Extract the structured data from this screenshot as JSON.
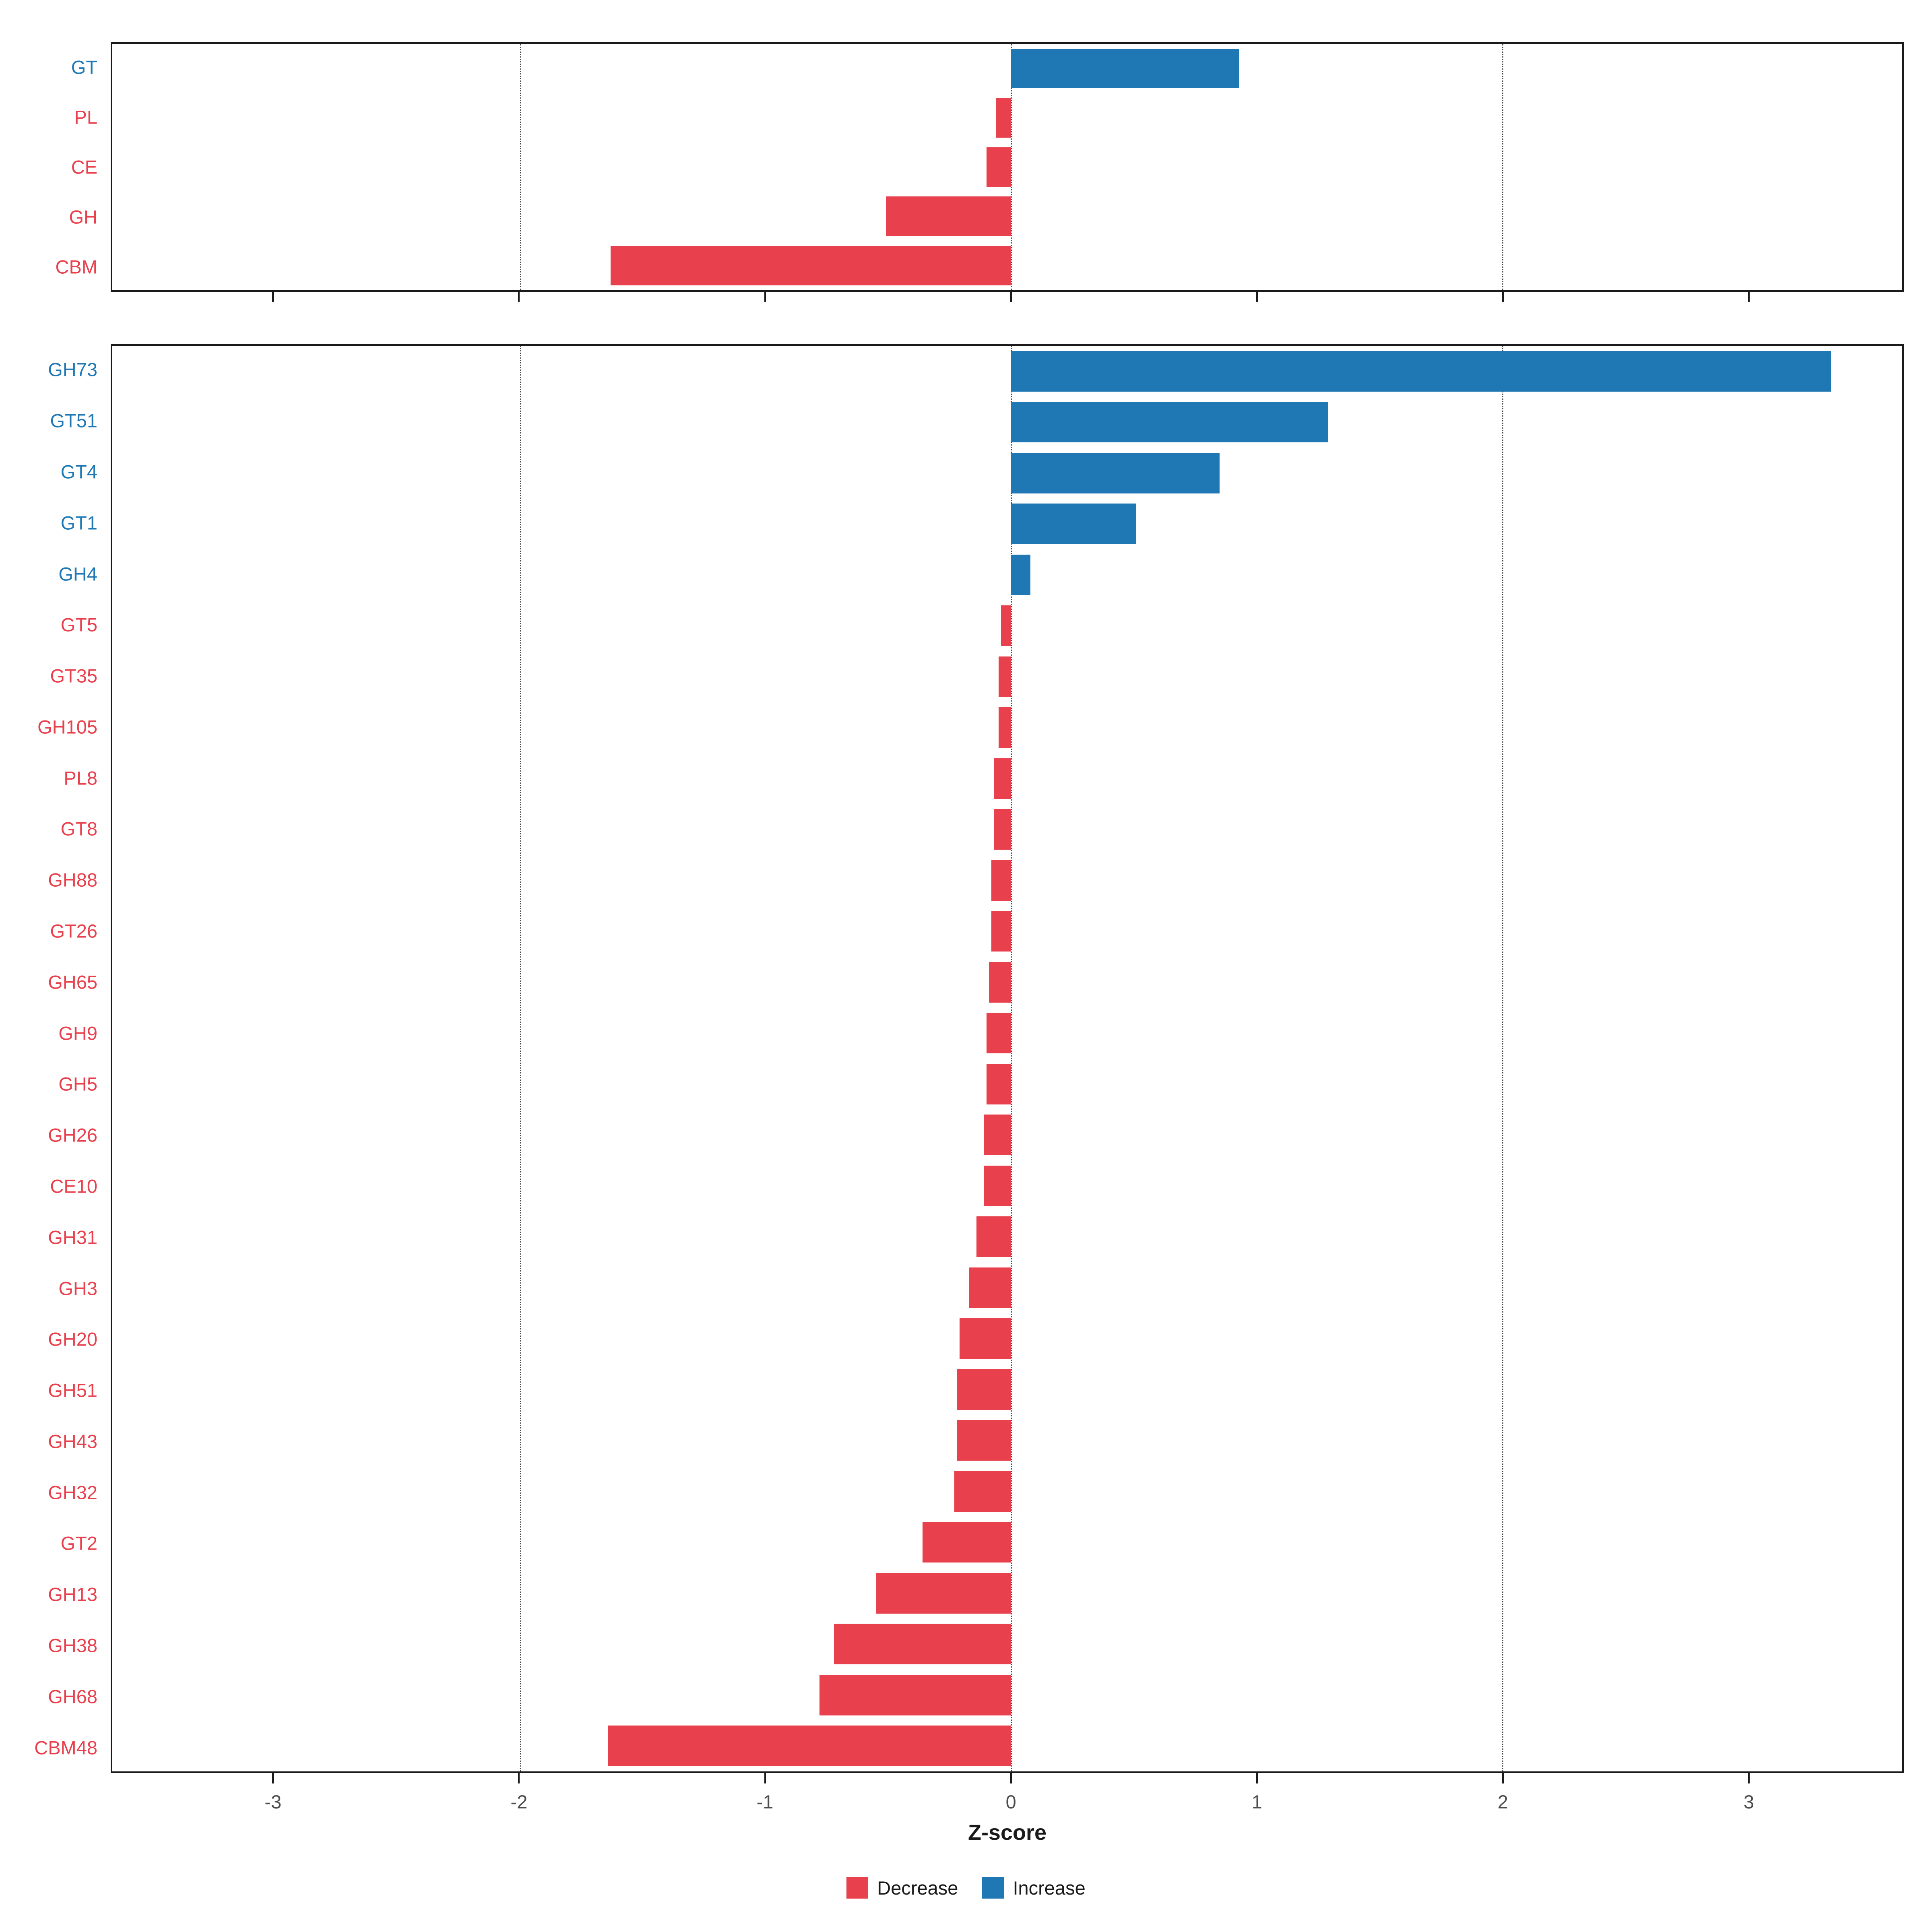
{
  "xlabel": "Z-score",
  "colors": {
    "decrease": "#E8414D",
    "increase": "#1F78B4",
    "grid": "#4a4a4a",
    "axis_text": "#4d4d4d",
    "panel_border": "#1a1a1a"
  },
  "legend": [
    {
      "label": "Decrease",
      "color_key": "decrease"
    },
    {
      "label": "Increase",
      "color_key": "increase"
    }
  ],
  "axis": {
    "xlim": [
      -3.66,
      3.63
    ],
    "gridlines": [
      -2,
      0,
      2
    ],
    "ticks": [
      {
        "value": -3,
        "label": "-3"
      },
      {
        "value": -2,
        "label": "-2"
      },
      {
        "value": -1,
        "label": "-1"
      },
      {
        "value": 0,
        "label": "0"
      },
      {
        "value": 1,
        "label": "1"
      },
      {
        "value": 2,
        "label": "2"
      },
      {
        "value": 3,
        "label": "3"
      }
    ]
  },
  "chart_data": [
    {
      "type": "bar",
      "orientation": "horizontal",
      "panel": "cazyme-classes",
      "xlabel": "Z-score",
      "xlim": [
        -3.66,
        3.63
      ],
      "categories": [
        "GT",
        "PL",
        "CE",
        "GH",
        "CBM"
      ],
      "values": [
        0.93,
        -0.06,
        -0.1,
        -0.51,
        -1.63
      ],
      "directions": [
        "increase",
        "decrease",
        "decrease",
        "decrease",
        "decrease"
      ]
    },
    {
      "type": "bar",
      "orientation": "horizontal",
      "panel": "cazyme-families",
      "xlabel": "Z-score",
      "xlim": [
        -3.66,
        3.63
      ],
      "categories": [
        "GH73",
        "GT51",
        "GT4",
        "GT1",
        "GH4",
        "GT5",
        "GT35",
        "GH105",
        "PL8",
        "GT8",
        "GH88",
        "GT26",
        "GH65",
        "GH9",
        "GH5",
        "GH26",
        "CE10",
        "GH31",
        "GH3",
        "GH20",
        "GH51",
        "GH43",
        "GH32",
        "GT2",
        "GH13",
        "GH38",
        "GH68",
        "CBM48"
      ],
      "values": [
        3.34,
        1.29,
        0.85,
        0.51,
        0.08,
        -0.04,
        -0.05,
        -0.05,
        -0.07,
        -0.07,
        -0.08,
        -0.08,
        -0.09,
        -0.1,
        -0.1,
        -0.11,
        -0.11,
        -0.14,
        -0.17,
        -0.21,
        -0.22,
        -0.22,
        -0.23,
        -0.36,
        -0.55,
        -0.72,
        -0.78,
        -1.64
      ],
      "directions": [
        "increase",
        "increase",
        "increase",
        "increase",
        "increase",
        "decrease",
        "decrease",
        "decrease",
        "decrease",
        "decrease",
        "decrease",
        "decrease",
        "decrease",
        "decrease",
        "decrease",
        "decrease",
        "decrease",
        "decrease",
        "decrease",
        "decrease",
        "decrease",
        "decrease",
        "decrease",
        "decrease",
        "decrease",
        "decrease",
        "decrease",
        "decrease"
      ]
    }
  ]
}
